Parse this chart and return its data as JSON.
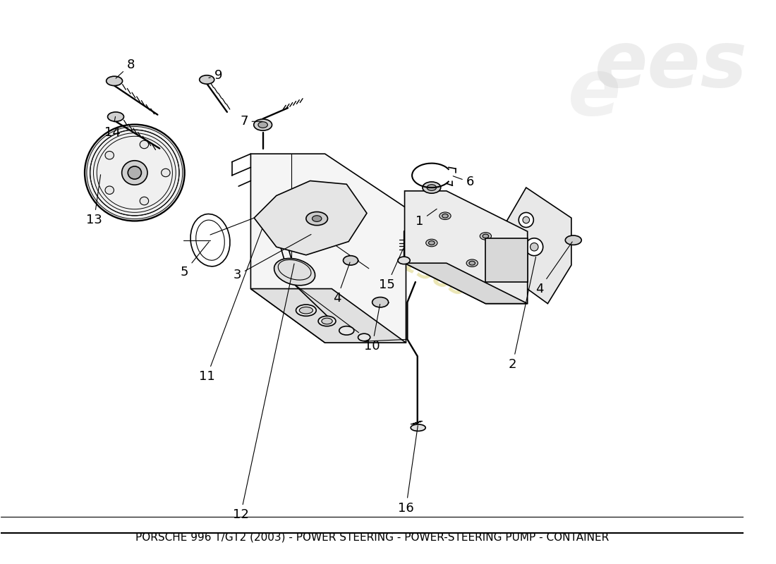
{
  "title": "PORSCHE 996 T/GT2 (2003) - POWER STEERING - POWER-STEERING PUMP - CONTAINER",
  "bg_color": "#ffffff",
  "line_color": "#000000",
  "watermark_text1": "a passion",
  "watermark_text2": "since1985",
  "watermark_color": "#d4c85a",
  "logo_color": "#c0c0c0",
  "font_size_labels": 13,
  "font_size_title": 11
}
